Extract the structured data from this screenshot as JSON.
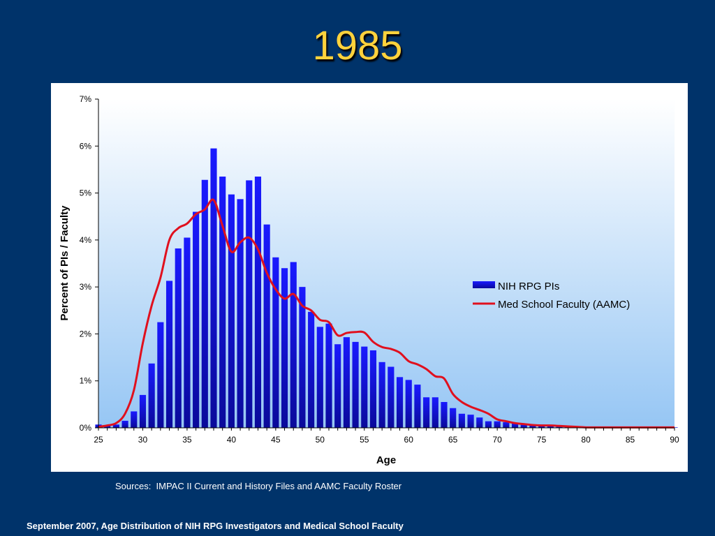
{
  "slide": {
    "title": "1985",
    "sources": "Sources:  IMPAC II Current and History Files and AAMC Faculty Roster",
    "footer": "September 2007, Age Distribution of NIH RPG Investigators and Medical School Faculty"
  },
  "colors": {
    "background": "#00336a",
    "title": "#ffd23c",
    "bar": "#1010e0",
    "line": "#e0101e"
  },
  "chart_data": {
    "type": "bar",
    "xlabel": "Age",
    "ylabel": "Percent of PIs / Faculty",
    "xlim": [
      25,
      90
    ],
    "ylim": [
      0,
      7
    ],
    "x_ticks": [
      25,
      30,
      35,
      40,
      45,
      50,
      55,
      60,
      65,
      70,
      75,
      80,
      85,
      90
    ],
    "y_ticks": [
      "0%",
      "1%",
      "2%",
      "3%",
      "4%",
      "5%",
      "6%",
      "7%"
    ],
    "legend_position": "right",
    "series": [
      {
        "name": "NIH RPG PIs",
        "type": "bar",
        "x": [
          25,
          26,
          27,
          28,
          29,
          30,
          31,
          32,
          33,
          34,
          35,
          36,
          37,
          38,
          39,
          40,
          41,
          42,
          43,
          44,
          45,
          46,
          47,
          48,
          49,
          50,
          51,
          52,
          53,
          54,
          55,
          56,
          57,
          58,
          59,
          60,
          61,
          62,
          63,
          64,
          65,
          66,
          67,
          68,
          69,
          70,
          71,
          72,
          73,
          74,
          75,
          76,
          77,
          78,
          79,
          80,
          81,
          82,
          83,
          84,
          85,
          86,
          87,
          88,
          89,
          90
        ],
        "values": [
          0.07,
          0.05,
          0.07,
          0.15,
          0.35,
          0.7,
          1.37,
          2.25,
          3.13,
          3.82,
          4.05,
          4.6,
          5.28,
          5.95,
          5.35,
          4.97,
          4.87,
          5.27,
          5.35,
          4.33,
          3.63,
          3.4,
          3.53,
          3.0,
          2.47,
          2.15,
          2.22,
          1.78,
          1.93,
          1.83,
          1.73,
          1.65,
          1.4,
          1.3,
          1.08,
          1.02,
          0.92,
          0.65,
          0.65,
          0.55,
          0.42,
          0.3,
          0.28,
          0.22,
          0.14,
          0.14,
          0.12,
          0.1,
          0.08,
          0.07,
          0.07,
          0.06,
          0.05,
          0.03,
          0.02,
          0.02,
          0.01,
          0.01,
          0.01,
          0.01,
          0.01,
          0.01,
          0.01,
          0.01,
          0.01,
          0.01
        ]
      },
      {
        "name": "Med School Faculty (AAMC)",
        "type": "line",
        "x": [
          25,
          26,
          27,
          28,
          29,
          30,
          31,
          32,
          33,
          34,
          35,
          36,
          37,
          38,
          39,
          40,
          41,
          42,
          43,
          44,
          45,
          46,
          47,
          48,
          49,
          50,
          51,
          52,
          53,
          54,
          55,
          56,
          57,
          58,
          59,
          60,
          61,
          62,
          63,
          64,
          65,
          66,
          67,
          68,
          69,
          70,
          71,
          72,
          73,
          74,
          75,
          76,
          77,
          78,
          79,
          80,
          81,
          82,
          83,
          84,
          85,
          86,
          87,
          88,
          89,
          90
        ],
        "values": [
          0.02,
          0.05,
          0.1,
          0.3,
          0.8,
          1.8,
          2.6,
          3.2,
          4.0,
          4.25,
          4.35,
          4.55,
          4.65,
          4.85,
          4.3,
          3.75,
          3.95,
          4.05,
          3.8,
          3.3,
          2.95,
          2.75,
          2.85,
          2.6,
          2.5,
          2.3,
          2.25,
          1.97,
          2.02,
          2.04,
          2.03,
          1.83,
          1.72,
          1.68,
          1.6,
          1.42,
          1.35,
          1.25,
          1.1,
          1.05,
          0.72,
          0.55,
          0.45,
          0.38,
          0.3,
          0.18,
          0.14,
          0.1,
          0.08,
          0.06,
          0.05,
          0.05,
          0.04,
          0.03,
          0.02,
          0.01,
          0.01,
          0.01,
          0.01,
          0.01,
          0.01,
          0.01,
          0.01,
          0.01,
          0.01,
          0.01
        ]
      }
    ]
  }
}
